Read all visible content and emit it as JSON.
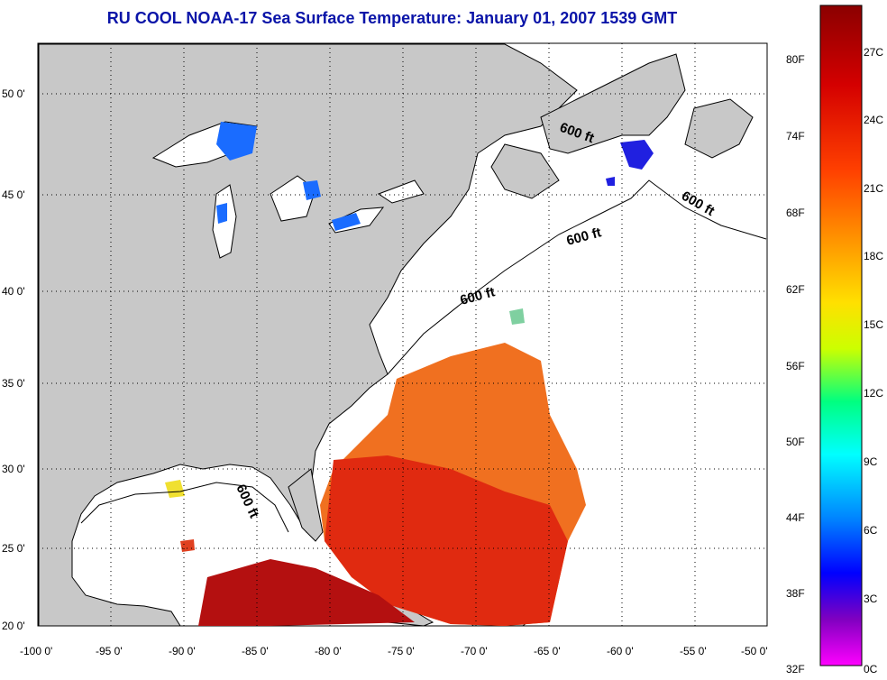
{
  "title": "RU COOL  NOAA-17  Sea Surface Temperature:  January 01, 2007 1539 GMT",
  "lat_labels": [
    "20 0'",
    "25 0'",
    "30 0'",
    "35 0'",
    "40 0'",
    "45 0'",
    "50 0'"
  ],
  "lon_labels": [
    "-100 0'",
    "-95 0'",
    "-90 0'",
    "-85 0'",
    "-80 0'",
    "-75 0'",
    "-70 0'",
    "-65 0'",
    "-60 0'",
    "-55 0'",
    "-50 0'"
  ],
  "contour_label": "600 ft",
  "colorbar": {
    "fahrenheit": [
      "80F",
      "74F",
      "68F",
      "62F",
      "56F",
      "50F",
      "44F",
      "38F",
      "32F"
    ],
    "celsius": [
      "27C",
      "24C",
      "21C",
      "18C",
      "15C",
      "12C",
      "9C",
      "6C",
      "3C",
      "0C"
    ]
  },
  "colors": {
    "land": "#c8c8c8",
    "title": "#0a14a8"
  }
}
